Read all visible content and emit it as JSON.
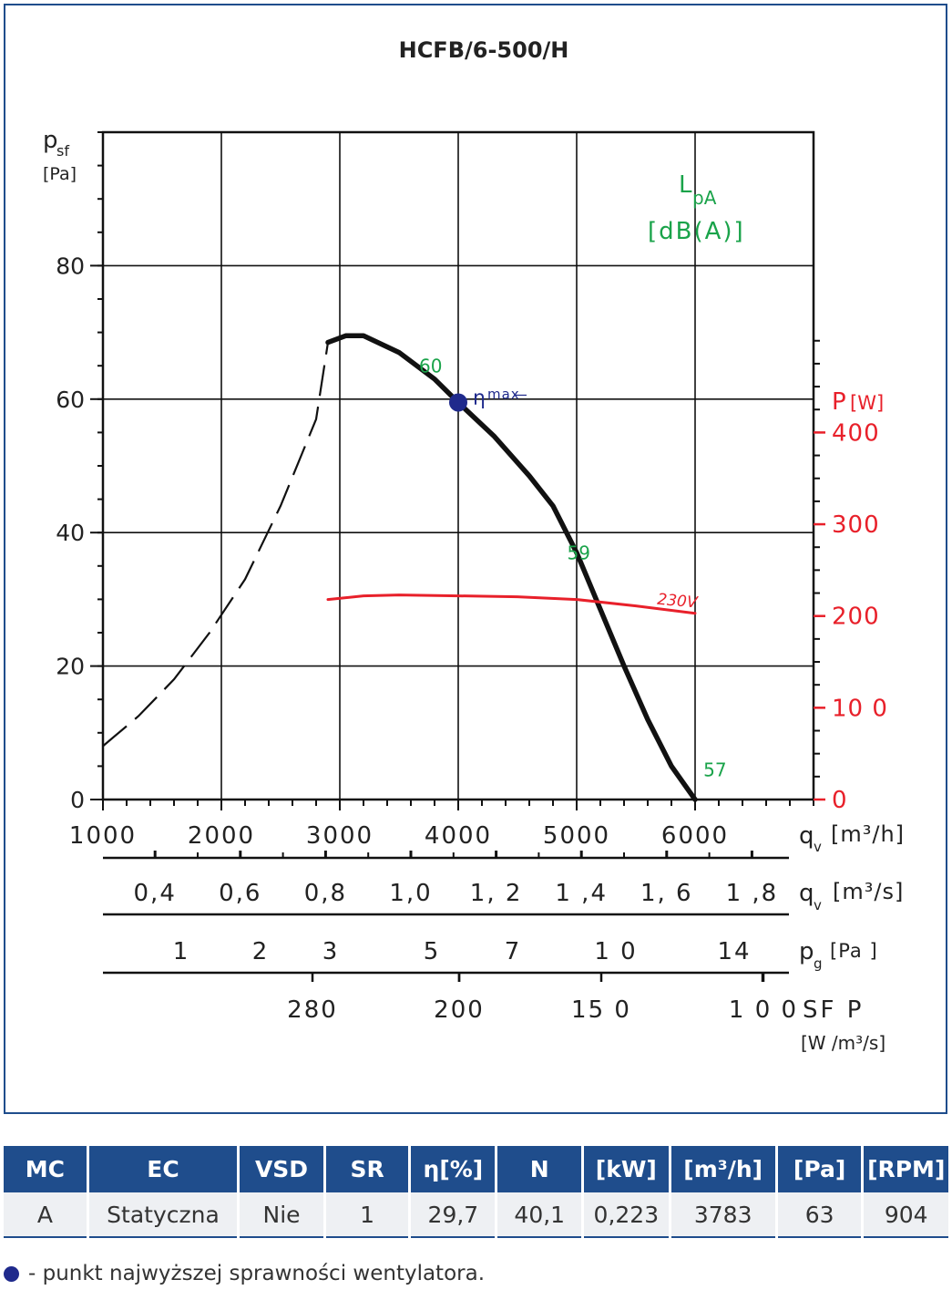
{
  "chart_data": {
    "type": "line",
    "title": "HCFB/6-500/H",
    "ylabel_main": "p",
    "ylabel_sub": "sf",
    "yunit": "[Pa]",
    "ylim": [
      0,
      100
    ],
    "yticks": [
      0,
      20,
      40,
      60,
      80
    ],
    "xlim": [
      1000,
      7000
    ],
    "xticks": [
      1000,
      2000,
      3000,
      4000,
      5000,
      6000
    ],
    "xlabel": "q",
    "xlabel_sub": "v",
    "xunit": "[m³/h]",
    "grid": true,
    "power_axis": {
      "label": "P",
      "unit": "[W]",
      "color": "#e8202a",
      "ticks": [
        "400",
        "300",
        "200",
        "10 0",
        "0"
      ],
      "tick_values": [
        400,
        300,
        200,
        100,
        0
      ],
      "range": [
        0,
        400
      ]
    },
    "noise_label": {
      "main": "L",
      "sub": "pA",
      "unit": "[dB(A)]",
      "color": "#1aa34a"
    },
    "noise_points": [
      {
        "x": 3900,
        "y": 64,
        "label": "60"
      },
      {
        "x": 5150,
        "y": 36,
        "label": "59"
      },
      {
        "x": 6070,
        "y": 3.5,
        "label": "57"
      }
    ],
    "series": [
      {
        "role": "fan-pressure-curve",
        "color": "#111111",
        "points": [
          [
            2900,
            68.5
          ],
          [
            3050,
            69.5
          ],
          [
            3200,
            69.5
          ],
          [
            3500,
            67
          ],
          [
            3800,
            63
          ],
          [
            4000,
            59.5
          ],
          [
            4300,
            54.5
          ],
          [
            4600,
            48.5
          ],
          [
            4800,
            44
          ],
          [
            5000,
            37
          ],
          [
            5200,
            28.5
          ],
          [
            5400,
            20
          ],
          [
            5600,
            12
          ],
          [
            5800,
            5
          ],
          [
            6000,
            0
          ]
        ]
      },
      {
        "role": "unstable-region",
        "color": "#111111",
        "dashed": true,
        "points": [
          [
            1000,
            8
          ],
          [
            1300,
            12.5
          ],
          [
            1600,
            18
          ],
          [
            1900,
            25
          ],
          [
            2200,
            33
          ],
          [
            2500,
            44
          ],
          [
            2800,
            57
          ],
          [
            2900,
            68.5
          ]
        ]
      },
      {
        "name": "230V",
        "role": "power-curve",
        "color": "#e8202a",
        "power_points": [
          [
            2900,
            218
          ],
          [
            3200,
            222
          ],
          [
            3500,
            223
          ],
          [
            4000,
            222
          ],
          [
            4500,
            221
          ],
          [
            5000,
            218
          ],
          [
            5500,
            211
          ],
          [
            6000,
            203
          ]
        ]
      }
    ],
    "eta_max": {
      "x": 4000,
      "y": 59.5,
      "label": "η",
      "sub": "max",
      "color": "#1f2a8c"
    },
    "extra_axes": [
      {
        "label": "q",
        "sub": "v",
        "unit": "[m³/s]",
        "ticks": [
          "0,4",
          "0,6",
          "0,8",
          "1,0",
          "1, 2",
          "1 ,4",
          "1, 6",
          "1 ,8"
        ],
        "values": [
          0.4,
          0.6,
          0.8,
          1.0,
          1.2,
          1.4,
          1.6,
          1.8
        ],
        "scale": "m3s"
      },
      {
        "label": "p",
        "sub": "g",
        "unit": "[Pa ]",
        "ticks": [
          "1",
          "2",
          "3",
          "5",
          "7",
          "1 0",
          "14"
        ],
        "values": [
          1,
          2,
          3,
          5,
          7,
          10,
          14
        ],
        "scale": "pg"
      },
      {
        "label": "SF P",
        "sub": "",
        "unit": "[W /m³/s]",
        "ticks": [
          "280",
          "200",
          "15 0",
          "1 0 0"
        ],
        "values": [
          280,
          200,
          150,
          100
        ],
        "scale": "sfp"
      }
    ]
  },
  "table": {
    "headers": [
      "MC",
      "EC",
      "VSD",
      "SR",
      "η[%]",
      "N",
      "[kW]",
      "[m³/h]",
      "[Pa]",
      "[RPM]"
    ],
    "row": [
      "A",
      "Statyczna",
      "Nie",
      "1",
      "29,7",
      "40,1",
      "0,223",
      "3783",
      "63",
      "904"
    ]
  },
  "footnote": "- punkt najwyższej sprawności wentylatora."
}
